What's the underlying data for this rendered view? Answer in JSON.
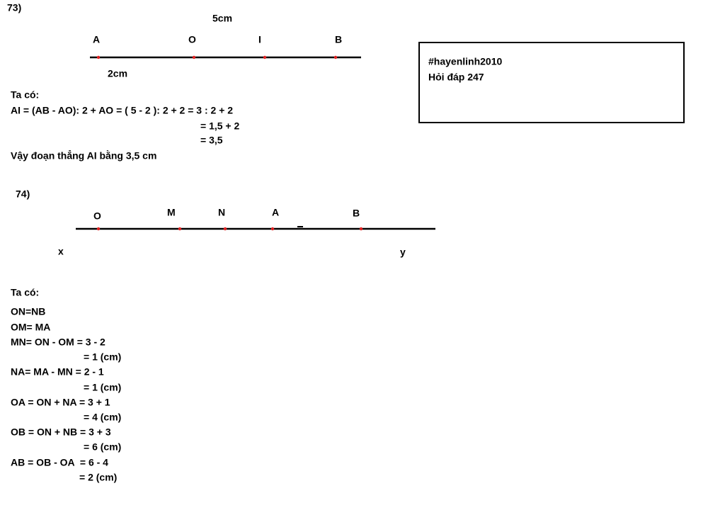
{
  "problems": [
    {
      "number": "73)",
      "diagram": {
        "top_label": "5cm",
        "points": [
          "A",
          "O",
          "I",
          "B"
        ],
        "bottom_label": "2cm"
      },
      "solution": {
        "heading": "Ta có:",
        "lines": [
          "AI = (AB - AO): 2 + AO = ( 5 - 2 ): 2 + 2 = 3 : 2 + 2",
          "= 1,5 + 2",
          "= 3,5"
        ],
        "conclusion": "Vậy đoạn thẳng AI bằng 3,5 cm"
      }
    },
    {
      "number": "74)",
      "diagram": {
        "points": [
          "O",
          "M",
          "N",
          "A",
          "B"
        ],
        "ends": [
          "x",
          "y"
        ]
      },
      "solution": {
        "heading": "Ta có:",
        "lines": [
          "ON=NB",
          "OM= MA",
          "MN= ON - OM = 3 - 2",
          "= 1 (cm)",
          "NA= MA - MN = 2 - 1",
          "= 1 (cm)",
          "OA = ON + NA = 3 + 1",
          "= 4 (cm)",
          "OB = ON + NB = 3 + 3",
          "= 6 (cm)",
          "AB = OB - OA  = 6 - 4",
          "= 2 (cm)"
        ]
      }
    }
  ],
  "note": {
    "lines": [
      "#hayenlinh2010",
      "Hỏi đáp 247"
    ]
  }
}
